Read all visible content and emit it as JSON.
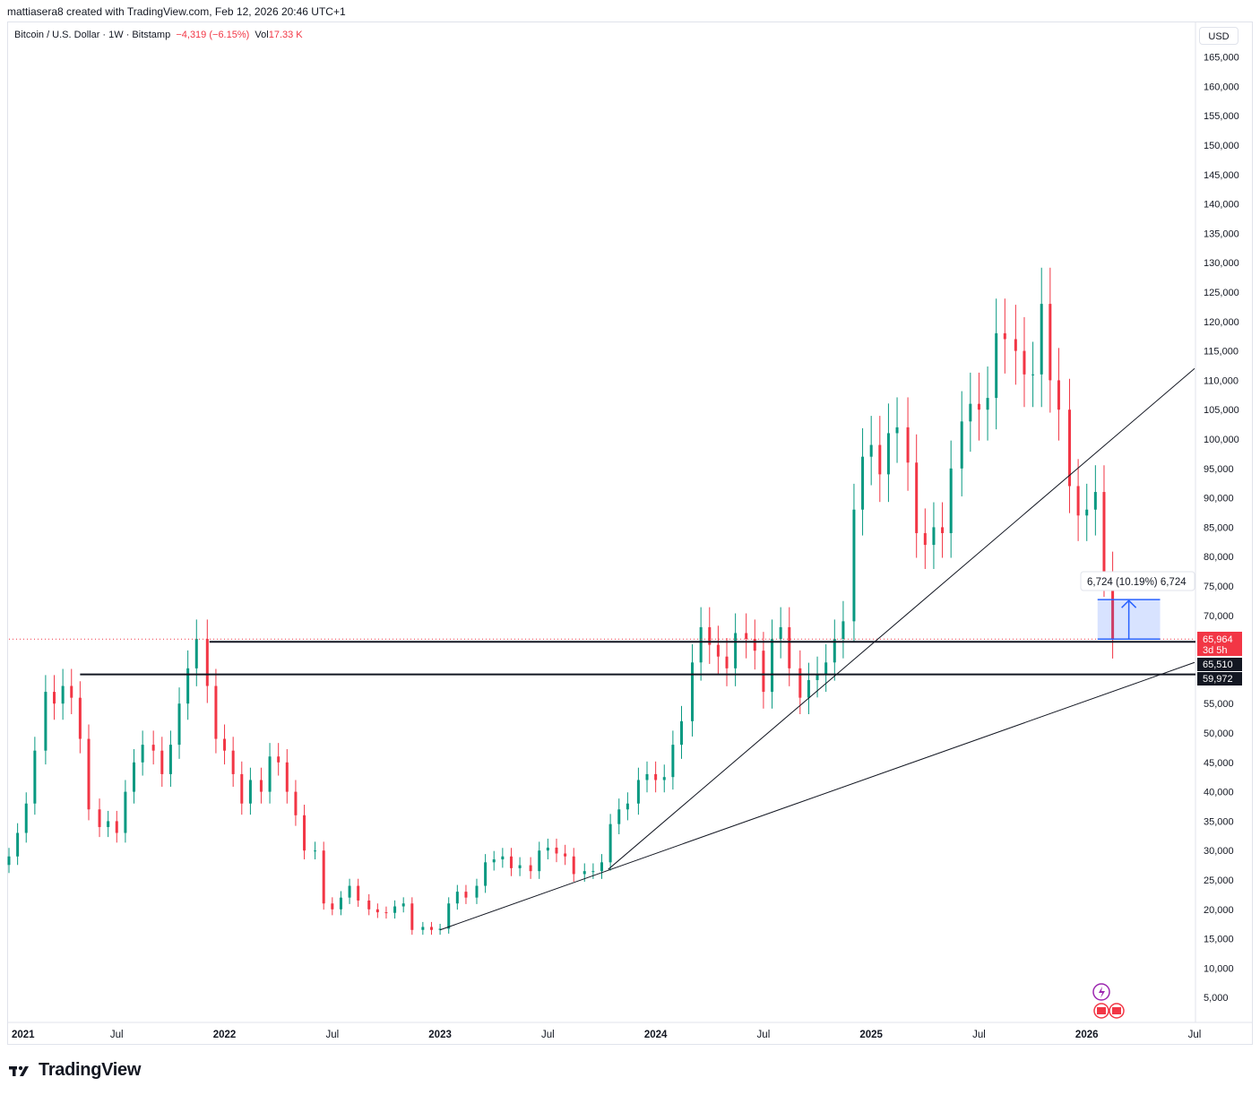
{
  "header": {
    "attribution": "mattiasera8 created with TradingView.com, Feb 12, 2026 20:46 UTC+1"
  },
  "legend": {
    "symbol": "Bitcoin / U.S. Dollar · 1W · Bitstamp",
    "change": "−4,319 (−6.15%)",
    "vol_label": "Vol",
    "vol_value": "17.33 K"
  },
  "price_axis": {
    "currency": "USD",
    "ticks": [
      "165,000",
      "160,000",
      "155,000",
      "150,000",
      "145,000",
      "140,000",
      "135,000",
      "130,000",
      "125,000",
      "120,000",
      "115,000",
      "110,000",
      "105,000",
      "100,000",
      "95,000",
      "90,000",
      "85,000",
      "80,000",
      "75,000",
      "70,000",
      "55,000",
      "50,000",
      "45,000",
      "40,000",
      "35,000",
      "30,000",
      "25,000",
      "20,000",
      "15,000",
      "10,000",
      "5,000"
    ]
  },
  "time_axis": {
    "labels": [
      {
        "text": "2021",
        "bold": true,
        "date": 2021.0
      },
      {
        "text": "Jul",
        "bold": false,
        "date": 2021.5
      },
      {
        "text": "2022",
        "bold": true,
        "date": 2022.0
      },
      {
        "text": "Jul",
        "bold": false,
        "date": 2022.5
      },
      {
        "text": "2023",
        "bold": true,
        "date": 2023.0
      },
      {
        "text": "Jul",
        "bold": false,
        "date": 2023.5
      },
      {
        "text": "2024",
        "bold": true,
        "date": 2024.0
      },
      {
        "text": "Jul",
        "bold": false,
        "date": 2024.5
      },
      {
        "text": "2025",
        "bold": true,
        "date": 2025.0
      },
      {
        "text": "Jul",
        "bold": false,
        "date": 2025.5
      },
      {
        "text": "2026",
        "bold": true,
        "date": 2026.0
      },
      {
        "text": "Jul",
        "bold": false,
        "date": 2026.5
      }
    ]
  },
  "price_badges": {
    "last": "65,964",
    "countdown": "3d 5h",
    "level_upper": "65,510",
    "level_lower": "59,972"
  },
  "measure_label": "6,724 (10.19%) 6,724",
  "branding": {
    "name": "TradingView"
  },
  "colors": {
    "up": "#089981",
    "down": "#f23645",
    "measure": "#2962ff",
    "line": "#131722"
  },
  "chart_data": {
    "type": "candlestick",
    "title": "Bitcoin / U.S. Dollar · 1W · Bitstamp",
    "x_unit": "year (decimal)",
    "y_unit": "USD",
    "xlim": [
      2021.0,
      2026.5
    ],
    "ylim": [
      0,
      168000
    ],
    "grid": false,
    "horizontal_levels": [
      65510,
      59972
    ],
    "last_price": 65964,
    "trendlines": [
      {
        "from": [
          2023.0,
          16500
        ],
        "to": [
          2026.5,
          62000
        ]
      },
      {
        "from": [
          2023.78,
          26800
        ],
        "to": [
          2026.5,
          112000
        ]
      }
    ],
    "measurement": {
      "from": 65964,
      "to": 72688,
      "x_range": [
        2026.05,
        2026.34
      ],
      "label": "6,724 (10.19%) 6,724"
    },
    "x": [
      2021.0,
      2021.04,
      2021.08,
      2021.12,
      2021.17,
      2021.21,
      2021.25,
      2021.29,
      2021.33,
      2021.37,
      2021.42,
      2021.46,
      2021.5,
      2021.54,
      2021.58,
      2021.62,
      2021.67,
      2021.71,
      2021.75,
      2021.79,
      2021.83,
      2021.87,
      2021.92,
      2021.96,
      2022.0,
      2022.04,
      2022.08,
      2022.12,
      2022.17,
      2022.21,
      2022.25,
      2022.29,
      2022.33,
      2022.37,
      2022.42,
      2022.46,
      2022.5,
      2022.54,
      2022.58,
      2022.62,
      2022.67,
      2022.71,
      2022.75,
      2022.79,
      2022.83,
      2022.87,
      2022.92,
      2022.96,
      2023.0,
      2023.04,
      2023.08,
      2023.12,
      2023.17,
      2023.21,
      2023.25,
      2023.29,
      2023.33,
      2023.37,
      2023.42,
      2023.46,
      2023.5,
      2023.54,
      2023.58,
      2023.62,
      2023.67,
      2023.71,
      2023.75,
      2023.79,
      2023.83,
      2023.87,
      2023.92,
      2023.96,
      2024.0,
      2024.04,
      2024.08,
      2024.12,
      2024.17,
      2024.21,
      2024.25,
      2024.29,
      2024.33,
      2024.37,
      2024.42,
      2024.46,
      2024.5,
      2024.54,
      2024.58,
      2024.62,
      2024.67,
      2024.71,
      2024.75,
      2024.79,
      2024.83,
      2024.87,
      2024.92,
      2024.96,
      2025.0,
      2025.04,
      2025.08,
      2025.12,
      2025.17,
      2025.21,
      2025.25,
      2025.29,
      2025.33,
      2025.37,
      2025.42,
      2025.46,
      2025.5,
      2025.54,
      2025.58,
      2025.62,
      2025.67,
      2025.71,
      2025.75,
      2025.79,
      2025.83,
      2025.87,
      2025.92,
      2025.96,
      2026.0,
      2026.04,
      2026.08,
      2026.12
    ],
    "close": [
      29000,
      33000,
      38000,
      47000,
      57000,
      55000,
      58000,
      56000,
      49000,
      37000,
      34000,
      35000,
      33000,
      40000,
      45000,
      48000,
      47000,
      43000,
      48000,
      55000,
      61000,
      66000,
      58000,
      49000,
      47000,
      43000,
      38000,
      42000,
      40000,
      46000,
      45000,
      40000,
      36000,
      30000,
      30000,
      21000,
      20000,
      22000,
      24000,
      21500,
      20000,
      19500,
      19400,
      20500,
      21000,
      16500,
      17000,
      16500,
      16700,
      21000,
      23000,
      22000,
      24000,
      28000,
      28500,
      29000,
      27000,
      27500,
      26500,
      30000,
      30500,
      29500,
      29000,
      26000,
      26500,
      26500,
      28000,
      34500,
      37000,
      38000,
      42000,
      43000,
      42000,
      42500,
      48000,
      52000,
      62000,
      68000,
      65000,
      63000,
      61000,
      67000,
      66000,
      64000,
      57000,
      66000,
      68000,
      61000,
      56000,
      59000,
      60000,
      62000,
      66000,
      69000,
      88000,
      97000,
      99000,
      94000,
      101000,
      102000,
      96000,
      84000,
      82000,
      85000,
      84000,
      95000,
      103000,
      106000,
      105000,
      107000,
      118000,
      117000,
      115000,
      111000,
      111000,
      123000,
      110000,
      105000,
      92000,
      87000,
      88000,
      91000,
      77000,
      65964
    ],
    "series": [
      {
        "name": "BTCUSD",
        "field": "close"
      }
    ]
  }
}
